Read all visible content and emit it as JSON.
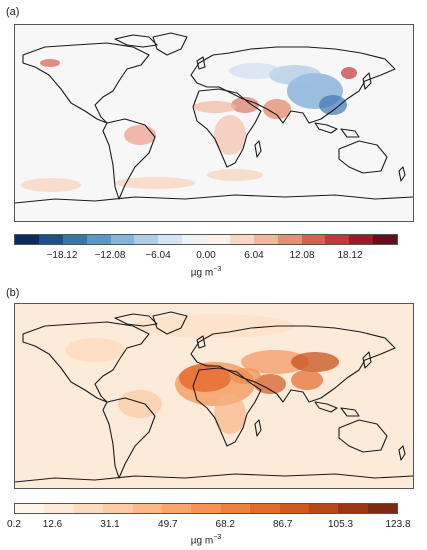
{
  "panel_a": {
    "label": "(a)",
    "colorbar": {
      "colors": [
        "#0b2c5c",
        "#1d4f8e",
        "#3a74b5",
        "#5b95cc",
        "#85b4dd",
        "#aecde9",
        "#d4e4f2",
        "#eef3f8",
        "#fbf1ea",
        "#f8d9c6",
        "#f2b79c",
        "#e98e75",
        "#d9604f",
        "#c3363a",
        "#9c1a2c",
        "#6b0a1f"
      ],
      "tick_labels": [
        "−18.12",
        "−12.08",
        "−6.04",
        "0.00",
        "6.04",
        "12.08",
        "18.12"
      ],
      "tick_values": [
        -18.12,
        -12.08,
        -6.04,
        0,
        6.04,
        12.08,
        18.12
      ],
      "range": [
        -24.16,
        24.16
      ]
    },
    "unit": "µg m",
    "unit_exp": "−3"
  },
  "panel_b": {
    "label": "(b)",
    "colorbar": {
      "colors": [
        "#fff6eb",
        "#fee9d4",
        "#fddbbd",
        "#fccba4",
        "#fbb989",
        "#f9a66e",
        "#f79254",
        "#f07e3d",
        "#e46a2b",
        "#d0581f",
        "#b84718",
        "#9c3713",
        "#7d2a10"
      ],
      "tick_labels": [
        "0.2",
        "12.6",
        "31.1",
        "49.7",
        "68.2",
        "86.7",
        "105.3",
        "123.8"
      ],
      "tick_values": [
        0.2,
        12.6,
        31.1,
        49.7,
        68.2,
        86.7,
        105.3,
        123.8
      ],
      "range": [
        0.2,
        123.8
      ]
    },
    "unit": "µg m",
    "unit_exp": "−3"
  }
}
